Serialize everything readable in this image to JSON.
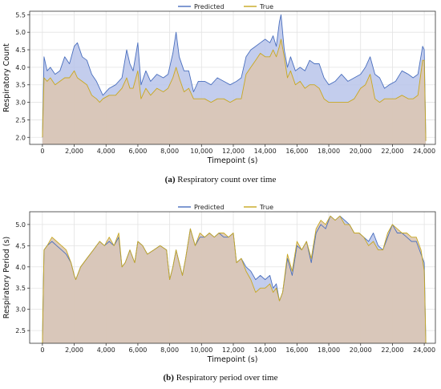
{
  "chart_data": [
    {
      "type": "area",
      "caption_label": "(a)",
      "caption_text": "Respiratory count over time",
      "xlabel": "Timepoint (s)",
      "ylabel": "Respiratory Count",
      "xlim": [
        -800,
        24700
      ],
      "ylim": [
        1.8,
        5.6
      ],
      "xticks": [
        0,
        2000,
        4000,
        6000,
        8000,
        10000,
        12000,
        14000,
        16000,
        18000,
        20000,
        22000,
        24000
      ],
      "xtick_labels": [
        "0",
        "2,000",
        "4,000",
        "6,000",
        "8,000",
        "10,000",
        "12,000",
        "14,000",
        "16,000",
        "18,000",
        "20,000",
        "22,000",
        "24,000"
      ],
      "yticks": [
        2.0,
        2.5,
        3.0,
        3.5,
        4.0,
        4.5,
        5.0,
        5.5
      ],
      "ytick_labels": [
        "2.0",
        "2.5",
        "3.0",
        "3.5",
        "4.0",
        "4.5",
        "5.0",
        "5.5"
      ],
      "grid": true,
      "legend_position": "top-center",
      "series": [
        {
          "name": "Predicted",
          "color": "#4a6fbe",
          "fill": "#b9c4ea",
          "x": [
            0,
            100,
            300,
            500,
            800,
            1100,
            1400,
            1700,
            2000,
            2200,
            2500,
            2800,
            3100,
            3400,
            3600,
            3800,
            4200,
            4600,
            5000,
            5300,
            5500,
            5700,
            6000,
            6200,
            6500,
            6800,
            7200,
            7600,
            7900,
            8200,
            8400,
            8600,
            8900,
            9200,
            9500,
            9800,
            10200,
            10600,
            11000,
            11400,
            11800,
            12200,
            12500,
            12800,
            13100,
            13400,
            13700,
            14000,
            14300,
            14500,
            14700,
            14900,
            15000,
            15200,
            15400,
            15600,
            15900,
            16200,
            16500,
            16800,
            17100,
            17400,
            17700,
            18000,
            18400,
            18800,
            19200,
            19600,
            20000,
            20300,
            20600,
            20900,
            21200,
            21500,
            21800,
            22200,
            22600,
            23000,
            23300,
            23600,
            23900,
            24000,
            24100
          ],
          "y": [
            2.0,
            4.3,
            3.9,
            4.0,
            3.8,
            3.9,
            4.3,
            4.1,
            4.6,
            4.7,
            4.3,
            4.2,
            3.8,
            3.6,
            3.4,
            3.2,
            3.4,
            3.5,
            3.7,
            4.5,
            4.1,
            3.9,
            4.7,
            3.5,
            3.9,
            3.6,
            3.8,
            3.7,
            3.8,
            4.4,
            5.0,
            4.3,
            3.9,
            3.9,
            3.3,
            3.6,
            3.6,
            3.5,
            3.7,
            3.6,
            3.5,
            3.6,
            3.7,
            4.3,
            4.5,
            4.6,
            4.7,
            4.8,
            4.7,
            4.9,
            4.6,
            5.3,
            5.5,
            4.5,
            4.0,
            4.3,
            3.9,
            4.0,
            3.9,
            4.2,
            4.1,
            4.1,
            3.7,
            3.5,
            3.6,
            3.8,
            3.6,
            3.7,
            3.8,
            4.0,
            4.3,
            3.8,
            3.7,
            3.4,
            3.5,
            3.6,
            3.9,
            3.8,
            3.7,
            3.8,
            4.6,
            4.5,
            1.9
          ]
        },
        {
          "name": "True",
          "color": "#c8a820",
          "fill": "#dcc7b4",
          "x": [
            0,
            100,
            300,
            500,
            800,
            1100,
            1400,
            1700,
            2000,
            2200,
            2500,
            2800,
            3100,
            3400,
            3600,
            3800,
            4200,
            4600,
            5000,
            5300,
            5500,
            5700,
            6000,
            6200,
            6500,
            6800,
            7200,
            7600,
            7900,
            8200,
            8400,
            8600,
            8900,
            9200,
            9500,
            9800,
            10200,
            10600,
            11000,
            11400,
            11800,
            12200,
            12500,
            12800,
            13100,
            13400,
            13700,
            14000,
            14300,
            14500,
            14700,
            14900,
            15000,
            15200,
            15400,
            15600,
            15900,
            16200,
            16500,
            16800,
            17100,
            17400,
            17700,
            18000,
            18400,
            18800,
            19200,
            19600,
            20000,
            20300,
            20600,
            20900,
            21200,
            21500,
            21800,
            22200,
            22600,
            23000,
            23300,
            23600,
            23900,
            24000,
            24100
          ],
          "y": [
            2.0,
            3.7,
            3.6,
            3.7,
            3.5,
            3.6,
            3.7,
            3.7,
            3.9,
            3.7,
            3.6,
            3.5,
            3.2,
            3.1,
            3.0,
            3.1,
            3.2,
            3.2,
            3.4,
            3.7,
            3.4,
            3.4,
            3.9,
            3.1,
            3.4,
            3.2,
            3.4,
            3.3,
            3.4,
            3.7,
            4.0,
            3.7,
            3.3,
            3.4,
            3.1,
            3.1,
            3.1,
            3.0,
            3.1,
            3.1,
            3.0,
            3.1,
            3.1,
            3.8,
            4.0,
            4.2,
            4.4,
            4.3,
            4.3,
            4.5,
            4.3,
            4.6,
            4.8,
            4.3,
            3.7,
            3.9,
            3.5,
            3.6,
            3.4,
            3.5,
            3.5,
            3.4,
            3.1,
            3.0,
            3.0,
            3.0,
            3.0,
            3.1,
            3.4,
            3.5,
            3.8,
            3.1,
            3.0,
            3.1,
            3.1,
            3.1,
            3.2,
            3.1,
            3.1,
            3.2,
            4.2,
            4.2,
            1.9
          ]
        }
      ]
    },
    {
      "type": "area",
      "caption_label": "(b)",
      "caption_text": "Respiratory period over time",
      "xlabel": "Timepoint (s)",
      "ylabel": "Respiratory Period (s)",
      "xlim": [
        -800,
        24700
      ],
      "ylim": [
        2.2,
        5.3
      ],
      "xticks": [
        0,
        2000,
        4000,
        6000,
        8000,
        10000,
        12000,
        14000,
        16000,
        18000,
        20000,
        22000,
        24000
      ],
      "xtick_labels": [
        "0",
        "2,000",
        "4,000",
        "6,000",
        "8,000",
        "10,000",
        "12,000",
        "14,000",
        "16,000",
        "18,000",
        "20,000",
        "22,000",
        "24,000"
      ],
      "yticks": [
        2.5,
        3.0,
        3.5,
        4.0,
        4.5,
        5.0
      ],
      "ytick_labels": [
        "2.5",
        "3.0",
        "3.5",
        "4.0",
        "4.5",
        "5.0"
      ],
      "grid": true,
      "legend_position": "top-center",
      "series": [
        {
          "name": "Predicted",
          "color": "#4a6fbe",
          "fill": "#b9c4ea",
          "x": [
            0,
            100,
            300,
            600,
            900,
            1200,
            1500,
            1800,
            2000,
            2100,
            2400,
            2800,
            3200,
            3600,
            3900,
            4200,
            4500,
            4800,
            5000,
            5200,
            5500,
            5800,
            6000,
            6300,
            6600,
            7000,
            7400,
            7800,
            8000,
            8200,
            8400,
            8600,
            8800,
            9000,
            9300,
            9600,
            9900,
            10200,
            10500,
            10800,
            11100,
            11400,
            11700,
            12000,
            12200,
            12500,
            12800,
            13100,
            13400,
            13700,
            14000,
            14300,
            14500,
            14700,
            14900,
            15100,
            15400,
            15700,
            16000,
            16300,
            16600,
            16900,
            17200,
            17500,
            17800,
            18100,
            18400,
            18700,
            19000,
            19300,
            19600,
            19900,
            20200,
            20500,
            20800,
            21100,
            21400,
            21700,
            22000,
            22300,
            22600,
            22900,
            23200,
            23500,
            23800,
            24000,
            24100
          ],
          "y": [
            2.2,
            4.4,
            4.5,
            4.6,
            4.5,
            4.4,
            4.3,
            4.1,
            3.8,
            3.7,
            4.0,
            4.2,
            4.4,
            4.6,
            4.5,
            4.6,
            4.5,
            4.7,
            4.0,
            4.1,
            4.4,
            4.1,
            4.6,
            4.5,
            4.3,
            4.4,
            4.5,
            4.4,
            3.7,
            4.0,
            4.4,
            4.1,
            3.8,
            4.2,
            4.9,
            4.5,
            4.7,
            4.7,
            4.8,
            4.7,
            4.8,
            4.7,
            4.7,
            4.8,
            4.1,
            4.2,
            4.0,
            3.9,
            3.7,
            3.8,
            3.7,
            3.8,
            3.5,
            3.6,
            3.2,
            3.4,
            4.2,
            3.8,
            4.5,
            4.4,
            4.6,
            4.1,
            4.8,
            5.0,
            4.9,
            5.2,
            5.1,
            5.2,
            5.1,
            5.0,
            4.8,
            4.8,
            4.7,
            4.6,
            4.8,
            4.5,
            4.4,
            4.7,
            5.0,
            4.8,
            4.8,
            4.7,
            4.6,
            4.6,
            4.3,
            4.1,
            2.2
          ]
        },
        {
          "name": "True",
          "color": "#c8a820",
          "fill": "#dcc7b4",
          "x": [
            0,
            100,
            300,
            600,
            900,
            1200,
            1500,
            1800,
            2000,
            2100,
            2400,
            2800,
            3200,
            3600,
            3900,
            4200,
            4500,
            4800,
            5000,
            5200,
            5500,
            5800,
            6000,
            6300,
            6600,
            7000,
            7400,
            7800,
            8000,
            8200,
            8400,
            8600,
            8800,
            9000,
            9300,
            9600,
            9900,
            10200,
            10500,
            10800,
            11100,
            11400,
            11700,
            12000,
            12200,
            12500,
            12800,
            13100,
            13400,
            13700,
            14000,
            14300,
            14500,
            14700,
            14900,
            15100,
            15400,
            15700,
            16000,
            16300,
            16600,
            16900,
            17200,
            17500,
            17800,
            18100,
            18400,
            18700,
            19000,
            19300,
            19600,
            19900,
            20200,
            20500,
            20800,
            21100,
            21400,
            21700,
            22000,
            22300,
            22600,
            22900,
            23200,
            23500,
            23800,
            24000,
            24100
          ],
          "y": [
            2.2,
            4.4,
            4.5,
            4.7,
            4.6,
            4.5,
            4.4,
            4.1,
            3.8,
            3.7,
            4.0,
            4.2,
            4.4,
            4.6,
            4.5,
            4.7,
            4.5,
            4.8,
            4.0,
            4.1,
            4.4,
            4.1,
            4.6,
            4.5,
            4.3,
            4.4,
            4.5,
            4.4,
            3.7,
            4.0,
            4.4,
            4.1,
            3.8,
            4.2,
            4.9,
            4.5,
            4.8,
            4.7,
            4.8,
            4.7,
            4.8,
            4.8,
            4.7,
            4.8,
            4.1,
            4.2,
            3.9,
            3.7,
            3.4,
            3.5,
            3.5,
            3.6,
            3.4,
            3.5,
            3.2,
            3.4,
            4.3,
            3.9,
            4.6,
            4.4,
            4.6,
            4.2,
            4.9,
            5.1,
            5.0,
            5.2,
            5.1,
            5.2,
            5.0,
            5.0,
            4.8,
            4.8,
            4.7,
            4.5,
            4.6,
            4.4,
            4.4,
            4.8,
            5.0,
            4.9,
            4.8,
            4.8,
            4.7,
            4.7,
            4.4,
            3.9,
            2.2
          ]
        }
      ]
    }
  ]
}
